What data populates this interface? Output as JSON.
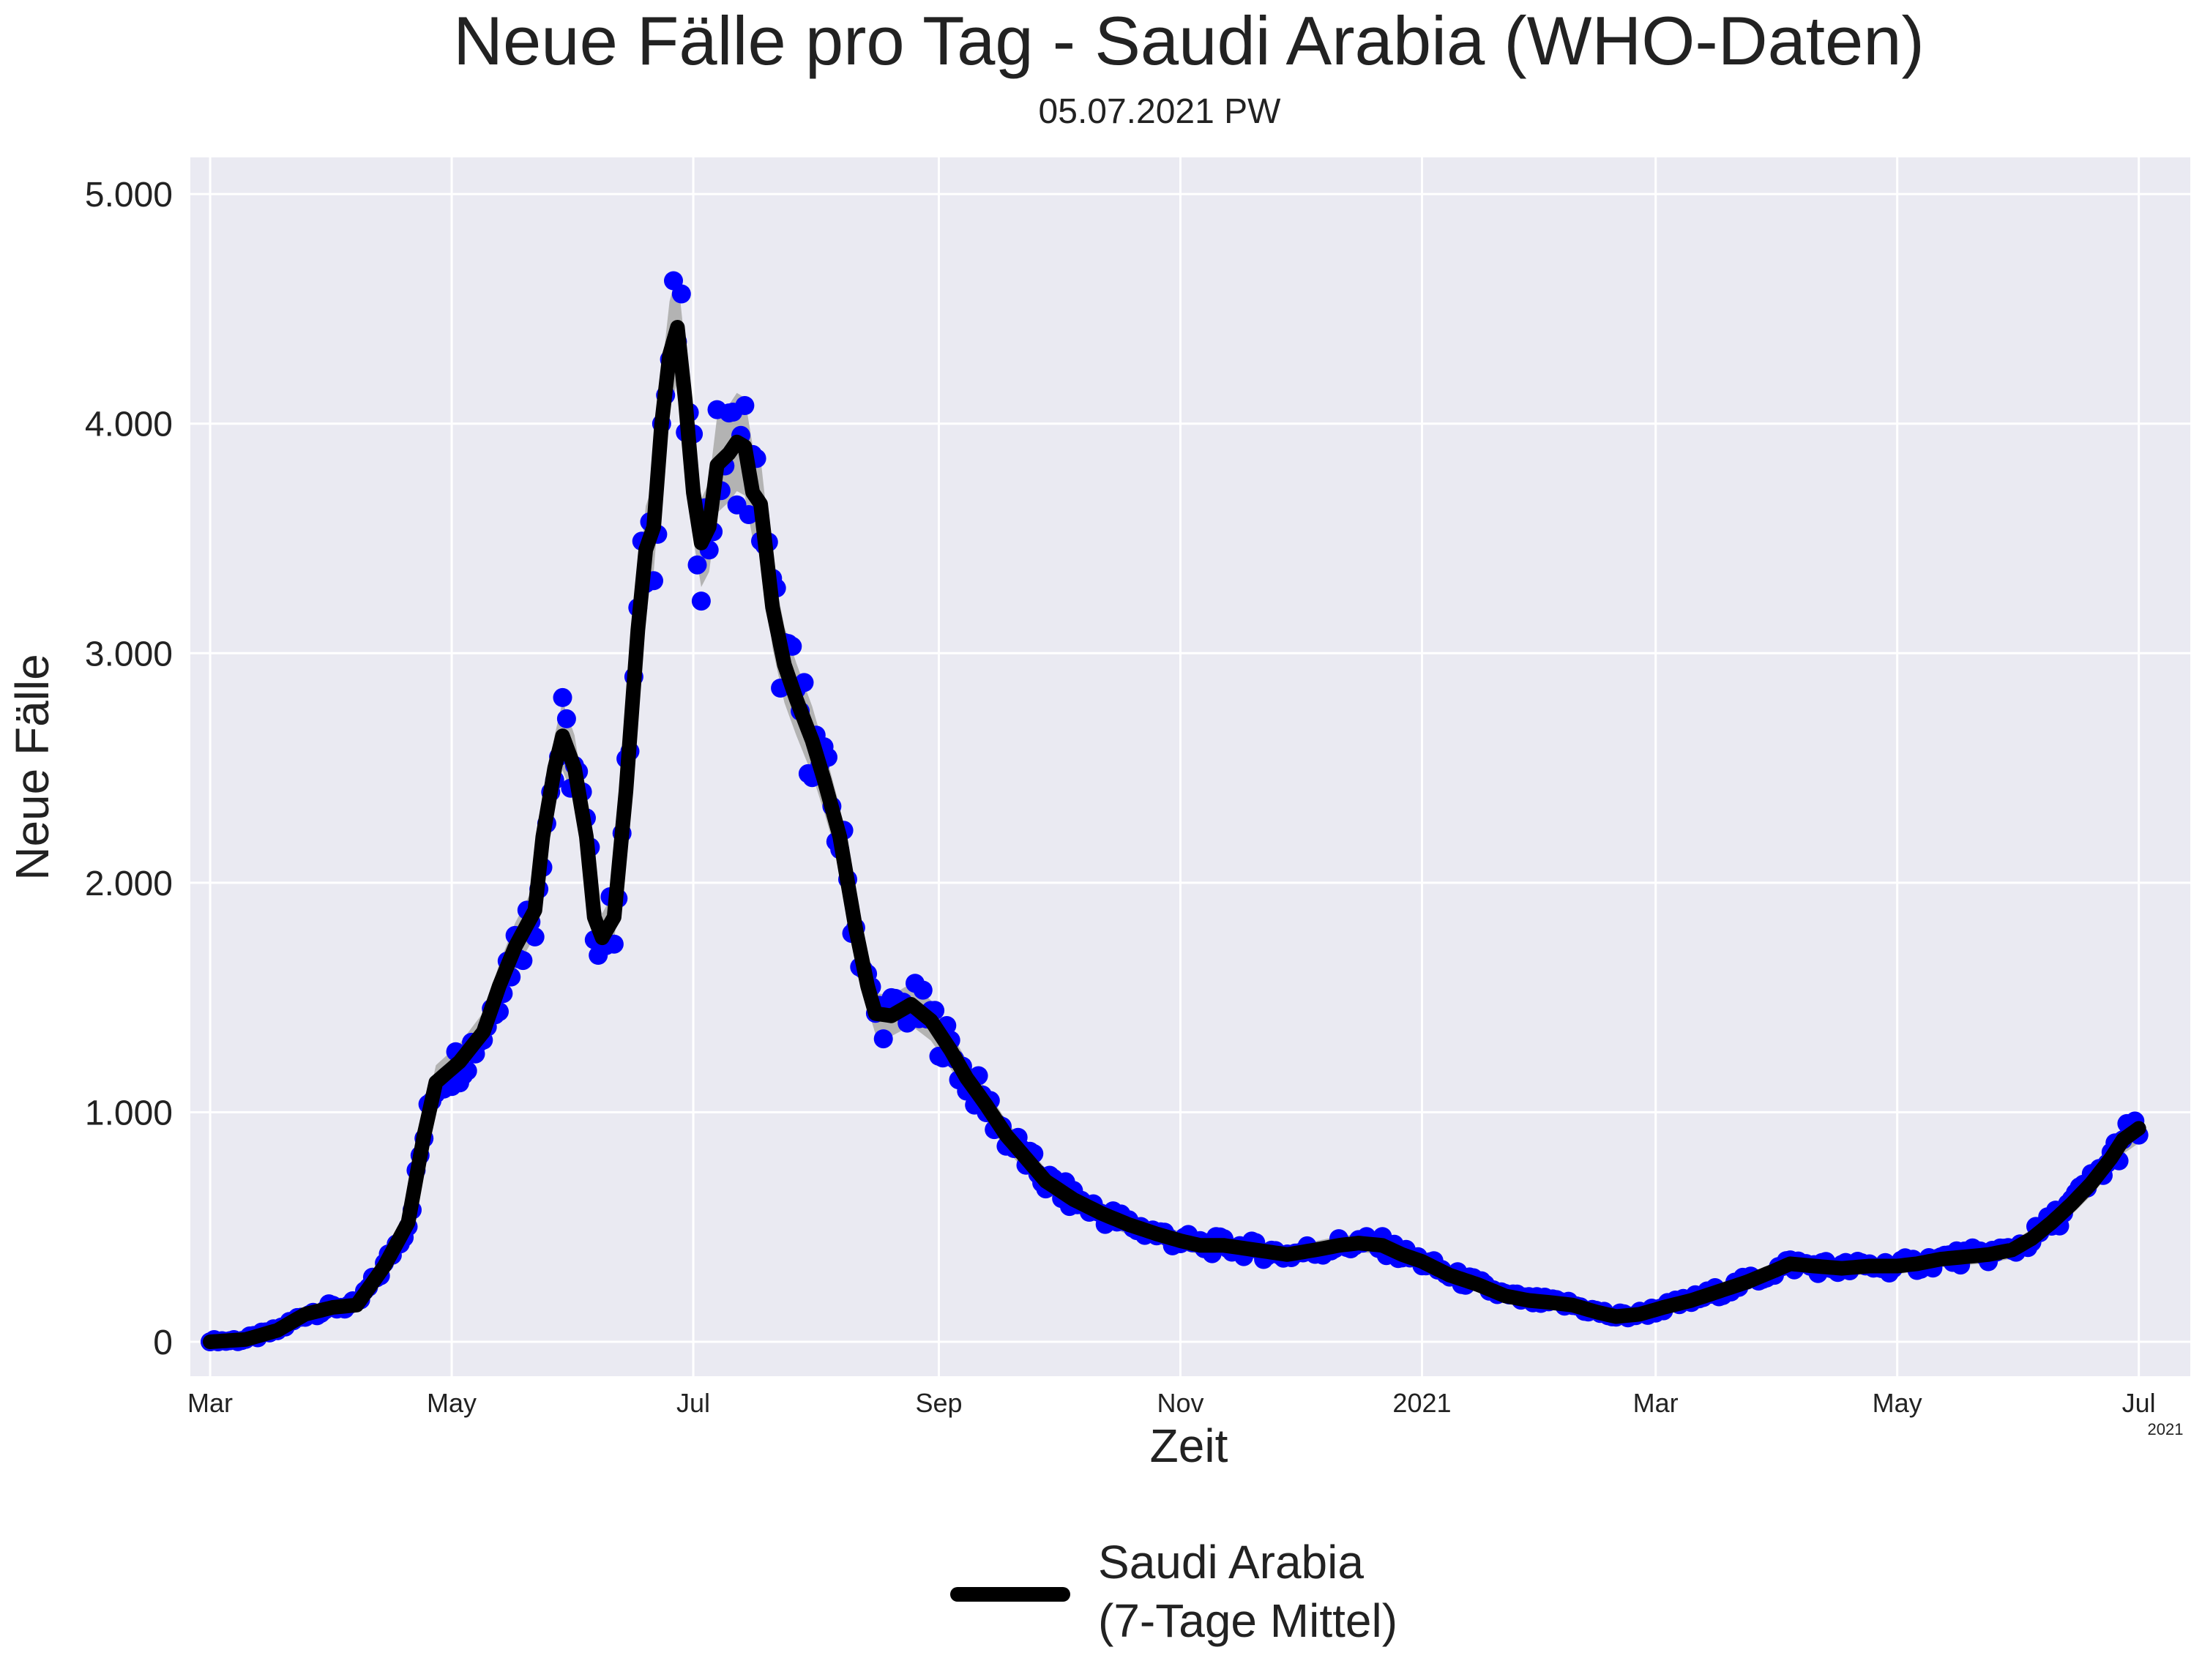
{
  "chart_data": {
    "type": "line",
    "title": "Neue Fälle pro Tag - Saudi Arabia (WHO-Daten)",
    "subtitle": "05.07.2021 PW",
    "xlabel": "Zeit",
    "ylabel": "Neue Fälle",
    "x_range": [
      "2020-02-25",
      "2021-07-14"
    ],
    "ylim": [
      -150,
      5160
    ],
    "y_ticks": [
      0,
      1000,
      2000,
      3000,
      4000,
      5000
    ],
    "y_tick_labels": [
      "0",
      "1.000",
      "2.000",
      "3.000",
      "4.000",
      "5.000"
    ],
    "x_ticks": [
      {
        "date": "2020-03-01",
        "label": "Mar"
      },
      {
        "date": "2020-05-01",
        "label": "May"
      },
      {
        "date": "2020-07-01",
        "label": "Jul"
      },
      {
        "date": "2020-09-01",
        "label": "Sep"
      },
      {
        "date": "2020-11-01",
        "label": "Nov"
      },
      {
        "date": "2021-01-01",
        "label": "2021"
      },
      {
        "date": "2021-03-01",
        "label": "Mar"
      },
      {
        "date": "2021-05-01",
        "label": "May"
      },
      {
        "date": "2021-07-01",
        "label": "Jul"
      }
    ],
    "x_offset_label": "2021",
    "grid": true,
    "legend": {
      "position": "bottom-center",
      "label_lines": [
        "Saudi Arabia",
        "(7-Tage Mittel)"
      ]
    },
    "colors": {
      "daily_points": "#0000ff",
      "moving_average": "#000000",
      "band": "#b3b3b3",
      "plot_background": "#eaeaf2",
      "grid": "#ffffff"
    },
    "series": [
      {
        "name": "Saudi Arabia (7-Tage Mittel)",
        "style": "line",
        "points": [
          [
            "2020-03-01",
            0
          ],
          [
            "2020-03-10",
            10
          ],
          [
            "2020-03-18",
            50
          ],
          [
            "2020-03-25",
            120
          ],
          [
            "2020-04-01",
            150
          ],
          [
            "2020-04-07",
            160
          ],
          [
            "2020-04-14",
            330
          ],
          [
            "2020-04-20",
            520
          ],
          [
            "2020-04-24",
            900
          ],
          [
            "2020-04-27",
            1130
          ],
          [
            "2020-05-03",
            1220
          ],
          [
            "2020-05-09",
            1350
          ],
          [
            "2020-05-13",
            1550
          ],
          [
            "2020-05-17",
            1720
          ],
          [
            "2020-05-22",
            1880
          ],
          [
            "2020-05-24",
            2200
          ],
          [
            "2020-05-27",
            2500
          ],
          [
            "2020-05-29",
            2640
          ],
          [
            "2020-06-01",
            2500
          ],
          [
            "2020-06-04",
            2200
          ],
          [
            "2020-06-06",
            1850
          ],
          [
            "2020-06-08",
            1760
          ],
          [
            "2020-06-11",
            1850
          ],
          [
            "2020-06-14",
            2400
          ],
          [
            "2020-06-17",
            3100
          ],
          [
            "2020-06-19",
            3450
          ],
          [
            "2020-06-21",
            3550
          ],
          [
            "2020-06-23",
            4000
          ],
          [
            "2020-06-25",
            4300
          ],
          [
            "2020-06-27",
            4420
          ],
          [
            "2020-06-29",
            4100
          ],
          [
            "2020-07-01",
            3700
          ],
          [
            "2020-07-03",
            3480
          ],
          [
            "2020-07-05",
            3550
          ],
          [
            "2020-07-07",
            3820
          ],
          [
            "2020-07-10",
            3870
          ],
          [
            "2020-07-12",
            3920
          ],
          [
            "2020-07-14",
            3900
          ],
          [
            "2020-07-16",
            3700
          ],
          [
            "2020-07-18",
            3650
          ],
          [
            "2020-07-21",
            3200
          ],
          [
            "2020-07-24",
            2950
          ],
          [
            "2020-07-27",
            2800
          ],
          [
            "2020-07-31",
            2620
          ],
          [
            "2020-08-03",
            2450
          ],
          [
            "2020-08-07",
            2200
          ],
          [
            "2020-08-11",
            1800
          ],
          [
            "2020-08-14",
            1550
          ],
          [
            "2020-08-16",
            1430
          ],
          [
            "2020-08-20",
            1420
          ],
          [
            "2020-08-25",
            1470
          ],
          [
            "2020-08-30",
            1400
          ],
          [
            "2020-09-04",
            1270
          ],
          [
            "2020-09-08",
            1150
          ],
          [
            "2020-09-13",
            1030
          ],
          [
            "2020-09-18",
            900
          ],
          [
            "2020-09-23",
            800
          ],
          [
            "2020-09-28",
            700
          ],
          [
            "2020-10-05",
            620
          ],
          [
            "2020-10-12",
            560
          ],
          [
            "2020-10-19",
            510
          ],
          [
            "2020-10-26",
            470
          ],
          [
            "2020-11-01",
            440
          ],
          [
            "2020-11-06",
            420
          ],
          [
            "2020-11-12",
            420
          ],
          [
            "2020-11-20",
            400
          ],
          [
            "2020-11-28",
            380
          ],
          [
            "2020-12-05",
            400
          ],
          [
            "2020-12-11",
            420
          ],
          [
            "2020-12-16",
            430
          ],
          [
            "2020-12-22",
            420
          ],
          [
            "2020-12-27",
            380
          ],
          [
            "2021-01-01",
            350
          ],
          [
            "2021-01-08",
            290
          ],
          [
            "2021-01-15",
            250
          ],
          [
            "2021-01-22",
            200
          ],
          [
            "2021-01-28",
            180
          ],
          [
            "2021-02-03",
            170
          ],
          [
            "2021-02-08",
            160
          ],
          [
            "2021-02-14",
            130
          ],
          [
            "2021-02-19",
            110
          ],
          [
            "2021-02-25",
            120
          ],
          [
            "2021-03-03",
            150
          ],
          [
            "2021-03-10",
            180
          ],
          [
            "2021-03-17",
            220
          ],
          [
            "2021-03-24",
            260
          ],
          [
            "2021-03-31",
            310
          ],
          [
            "2021-04-04",
            340
          ],
          [
            "2021-04-10",
            330
          ],
          [
            "2021-04-17",
            320
          ],
          [
            "2021-04-24",
            330
          ],
          [
            "2021-05-01",
            330
          ],
          [
            "2021-05-06",
            340
          ],
          [
            "2021-05-12",
            360
          ],
          [
            "2021-05-18",
            370
          ],
          [
            "2021-05-24",
            380
          ],
          [
            "2021-05-30",
            400
          ],
          [
            "2021-06-04",
            450
          ],
          [
            "2021-06-09",
            520
          ],
          [
            "2021-06-14",
            600
          ],
          [
            "2021-06-19",
            690
          ],
          [
            "2021-06-24",
            800
          ],
          [
            "2021-06-27",
            880
          ],
          [
            "2021-07-01",
            930
          ]
        ]
      }
    ]
  }
}
